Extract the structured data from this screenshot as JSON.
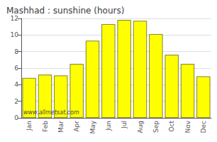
{
  "chart_data": {
    "type": "bar",
    "title": "Mashhad : sunshine (hours)",
    "categories": [
      "Jan",
      "Feb",
      "Mar",
      "Apr",
      "May",
      "Jun",
      "Jul",
      "Aug",
      "Sep",
      "Oct",
      "Nov",
      "Dec"
    ],
    "values": [
      4.8,
      5.2,
      5.1,
      6.5,
      9.3,
      11.3,
      11.8,
      11.7,
      10.1,
      7.6,
      6.5,
      5.0
    ],
    "color": "#FFFF00",
    "ylim": [
      0,
      12
    ],
    "yticks": [
      0,
      2,
      4,
      6,
      8,
      10,
      12
    ],
    "grid": true,
    "annotations": [
      "www.allmetsat.com"
    ]
  }
}
